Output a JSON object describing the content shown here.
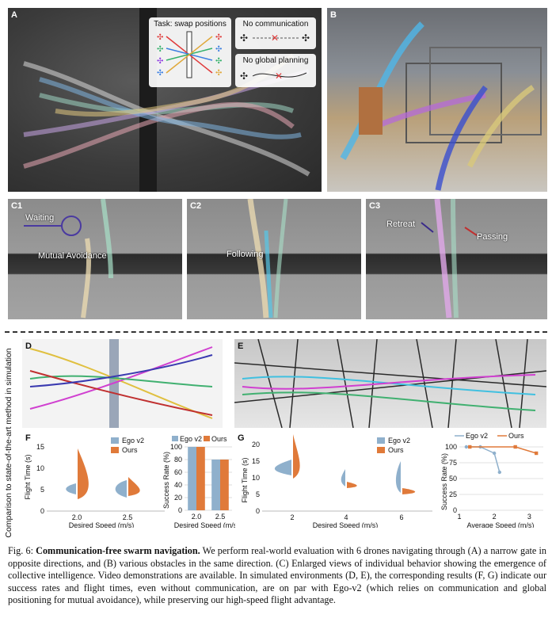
{
  "panel_labels": {
    "A": "A",
    "B": "B",
    "C1": "C1",
    "C2": "C2",
    "C3": "C3",
    "D": "D",
    "E": "E",
    "F": "F",
    "G": "G"
  },
  "panel_a": {
    "legend": {
      "task": "Task: swap positions",
      "no_comm": "No communication",
      "no_plan": "No global planning"
    }
  },
  "callouts": {
    "waiting": "Waiting",
    "mutual": "Mutual Avoidance",
    "following": "Following",
    "retreat": "Retreat",
    "passing": "Passing"
  },
  "side_label": "Comparison to state-of-the-art method in simulation",
  "colors": {
    "ego": "#8fb0cc",
    "ours": "#e07a3a"
  },
  "charts": {
    "f_violin": {
      "ylabel": "Flight Time (s)",
      "xlabel": "Desired Speed (m/s)",
      "yticks": [
        "0",
        "5",
        "10",
        "15"
      ],
      "xticks": [
        "2.0",
        "2.5"
      ],
      "legend": [
        "Ego v2",
        "Ours"
      ]
    },
    "f_bar": {
      "ylabel": "Success Rate (%)",
      "xlabel": "Desired Speed (m/s)",
      "yticks": [
        "0",
        "20",
        "40",
        "60",
        "80",
        "100"
      ],
      "xticks": [
        "2.0",
        "2.5"
      ],
      "legend": [
        "Ego v2",
        "Ours"
      ]
    },
    "g_violin": {
      "ylabel": "Flight Time (s)",
      "xlabel": "Desired Speed (m/s)",
      "yticks": [
        "0",
        "5",
        "10",
        "15",
        "20"
      ],
      "xticks": [
        "2",
        "4",
        "6"
      ],
      "legend": [
        "Ego v2",
        "Ours"
      ]
    },
    "g_line": {
      "ylabel": "Success Rate (%)",
      "xlabel": "Average Speed (m/s)",
      "yticks": [
        "0",
        "25",
        "50",
        "75",
        "100"
      ],
      "xticks": [
        "1",
        "2",
        "3"
      ],
      "legend": [
        "Ego v2",
        "Ours"
      ]
    }
  },
  "chart_data": [
    {
      "type": "bar",
      "panel": "F",
      "categories": [
        "2.0",
        "2.5"
      ],
      "series": [
        {
          "name": "Ego v2",
          "values": [
            100,
            80
          ]
        },
        {
          "name": "Ours",
          "values": [
            100,
            80
          ]
        }
      ],
      "xlabel": "Desired Speed (m/s)",
      "ylabel": "Success Rate (%)",
      "ylim": [
        0,
        100
      ]
    },
    {
      "type": "line",
      "panel": "G",
      "series": [
        {
          "name": "Ego v2",
          "x": [
            1.2,
            1.6,
            2.0,
            2.15
          ],
          "values": [
            100,
            100,
            90,
            60
          ]
        },
        {
          "name": "Ours",
          "x": [
            1.3,
            2.6,
            3.2
          ],
          "values": [
            100,
            100,
            90
          ]
        }
      ],
      "xlabel": "Average Speed (m/s)",
      "ylabel": "Success Rate (%)",
      "ylim": [
        0,
        100
      ],
      "xlim": [
        1,
        3.4
      ]
    }
  ],
  "caption": {
    "fig": "Fig. 6:",
    "title": "Communication-free swarm navigation.",
    "body": " We perform real-world evaluation with 6 drones navigating through (A) a narrow gate in opposite directions, and (B) various obstacles in the same direction. (C) Enlarged views of individual behavior showing the emergence of collective intelligence. Video demonstrations are available. In simulated environments (D, E), the corresponding results (F, G) indicate our success rates and flight times, even without communication, are on par with Ego-v2 (which relies on communication and global positioning for mutual avoidance), while preserving our high-speed flight advantage."
  }
}
